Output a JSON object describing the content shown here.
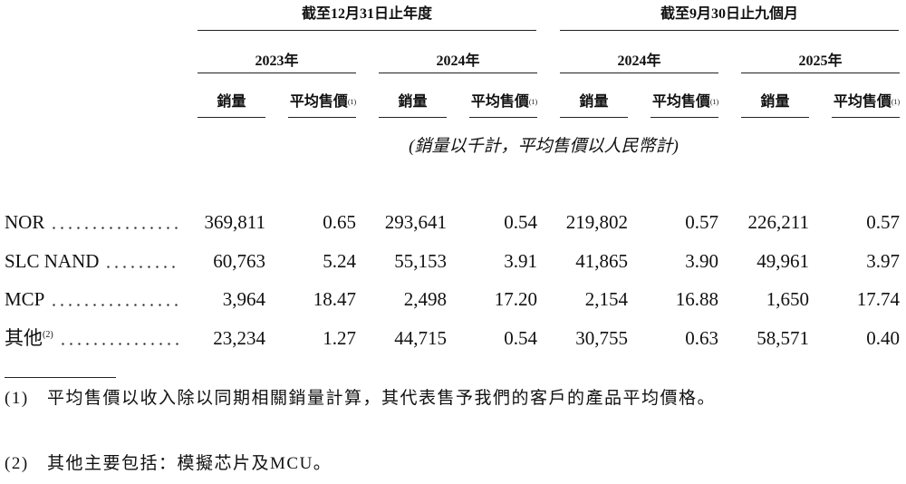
{
  "header": {
    "groups": [
      {
        "title": "截至12月31日止年度",
        "years": [
          "2023年",
          "2024年"
        ]
      },
      {
        "title": "截至9月30日止九個月",
        "years": [
          "2024年",
          "2025年"
        ]
      }
    ],
    "columns": [
      {
        "text": "銷量"
      },
      {
        "text": "平均售價",
        "note": "(1)"
      }
    ],
    "unit_note": "(銷量以千計，平均售價以人民幣計)"
  },
  "table": {
    "rows": [
      {
        "label": "NOR",
        "cells": [
          "369,811",
          "0.65",
          "293,641",
          "0.54",
          "219,802",
          "0.57",
          "226,211",
          "0.57"
        ]
      },
      {
        "label": "SLC NAND",
        "cells": [
          "60,763",
          "5.24",
          "55,153",
          "3.91",
          "41,865",
          "3.90",
          "49,961",
          "3.97"
        ]
      },
      {
        "label": "MCP",
        "cells": [
          "3,964",
          "18.47",
          "2,498",
          "17.20",
          "2,154",
          "16.88",
          "1,650",
          "17.74"
        ]
      },
      {
        "label": "其他",
        "note": "(2)",
        "cells": [
          "23,234",
          "1.27",
          "44,715",
          "0.54",
          "30,755",
          "0.63",
          "58,571",
          "0.40"
        ]
      }
    ]
  },
  "footnotes": [
    {
      "marker": "(1)",
      "text": "平均售價以收入除以同期相關銷量計算，其代表售予我們的客戶的產品平均價格。"
    },
    {
      "marker": "(2)",
      "text": "其他主要包括：模擬芯片及MCU。"
    }
  ]
}
